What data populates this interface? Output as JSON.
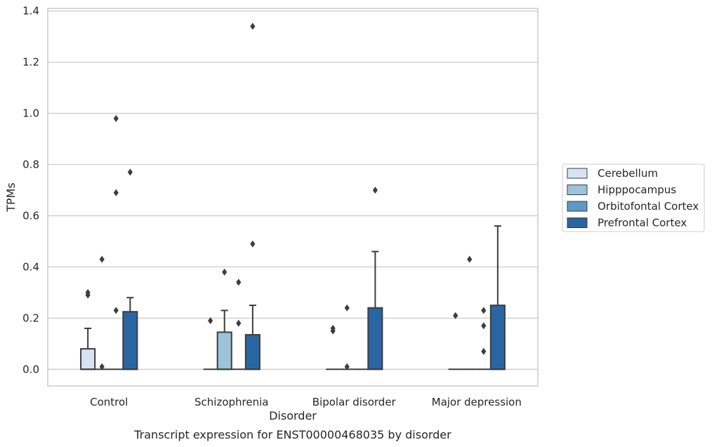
{
  "caption": "Transcript expression for ENST00000468035 by disorder",
  "chart_data": {
    "type": "box",
    "xlabel": "Disorder",
    "ylabel": "TPMs",
    "ylim": [
      -0.065,
      1.41
    ],
    "yticks": [
      0.0,
      0.2,
      0.4,
      0.6,
      0.8,
      1.0,
      1.2,
      1.4
    ],
    "ytick_labels": [
      "0.0",
      "0.2",
      "0.4",
      "0.6",
      "0.8",
      "1.0",
      "1.2",
      "1.4"
    ],
    "grid": "horizontal",
    "legend_position": "right",
    "categories": [
      "Control",
      "Schizophrenia",
      "Bipolar disorder",
      "Major depression"
    ],
    "series": [
      {
        "name": "Cerebellum",
        "color": "#d6e4f2",
        "boxes": [
          {
            "q1": 0,
            "median": 0,
            "q3": 0.08,
            "whisker_low": 0,
            "whisker_high": 0.16,
            "outliers": [
              0.29,
              0.3
            ]
          },
          {
            "q1": 0,
            "median": 0,
            "q3": 0,
            "whisker_low": 0,
            "whisker_high": 0,
            "outliers": [
              0.19
            ]
          },
          {
            "q1": 0,
            "median": 0,
            "q3": 0,
            "whisker_low": 0,
            "whisker_high": 0,
            "outliers": [
              0.15,
              0.16
            ]
          },
          {
            "q1": 0,
            "median": 0,
            "q3": 0,
            "whisker_low": 0,
            "whisker_high": 0,
            "outliers": [
              0.21
            ]
          }
        ]
      },
      {
        "name": "Hipppocampus",
        "color": "#9cc3da",
        "boxes": [
          {
            "q1": 0,
            "median": 0,
            "q3": 0,
            "whisker_low": 0,
            "whisker_high": 0,
            "outliers": [
              0.01,
              0.43
            ]
          },
          {
            "q1": 0,
            "median": 0,
            "q3": 0.145,
            "whisker_low": 0,
            "whisker_high": 0.23,
            "outliers": [
              0.38
            ]
          },
          {
            "q1": 0,
            "median": 0,
            "q3": 0,
            "whisker_low": 0,
            "whisker_high": 0,
            "outliers": [
              0.01,
              0.24
            ]
          },
          {
            "q1": 0,
            "median": 0,
            "q3": 0,
            "whisker_low": 0,
            "whisker_high": 0,
            "outliers": [
              0.43
            ]
          }
        ]
      },
      {
        "name": "Orbitofontal Cortex",
        "color": "#5b9ac8",
        "boxes": [
          {
            "q1": 0,
            "median": 0,
            "q3": 0,
            "whisker_low": 0,
            "whisker_high": 0,
            "outliers": [
              0.23,
              0.69,
              0.98
            ]
          },
          {
            "q1": 0,
            "median": 0,
            "q3": 0,
            "whisker_low": 0,
            "whisker_high": 0,
            "outliers": [
              0.18,
              0.34
            ]
          },
          {
            "q1": 0,
            "median": 0,
            "q3": 0,
            "whisker_low": 0,
            "whisker_high": 0,
            "outliers": []
          },
          {
            "q1": 0,
            "median": 0,
            "q3": 0,
            "whisker_low": 0,
            "whisker_high": 0,
            "outliers": [
              0.07,
              0.17,
              0.23
            ]
          }
        ]
      },
      {
        "name": "Prefrontal Cortex",
        "color": "#2a65a3",
        "boxes": [
          {
            "q1": 0,
            "median": 0,
            "q3": 0.225,
            "whisker_low": 0,
            "whisker_high": 0.28,
            "outliers": [
              0.77
            ]
          },
          {
            "q1": 0,
            "median": 0,
            "q3": 0.135,
            "whisker_low": 0,
            "whisker_high": 0.25,
            "outliers": [
              0.49,
              1.34
            ]
          },
          {
            "q1": 0,
            "median": 0,
            "q3": 0.24,
            "whisker_low": 0,
            "whisker_high": 0.46,
            "outliers": [
              0.7
            ]
          },
          {
            "q1": 0,
            "median": 0,
            "q3": 0.25,
            "whisker_low": 0,
            "whisker_high": 0.56,
            "outliers": []
          }
        ]
      }
    ]
  }
}
